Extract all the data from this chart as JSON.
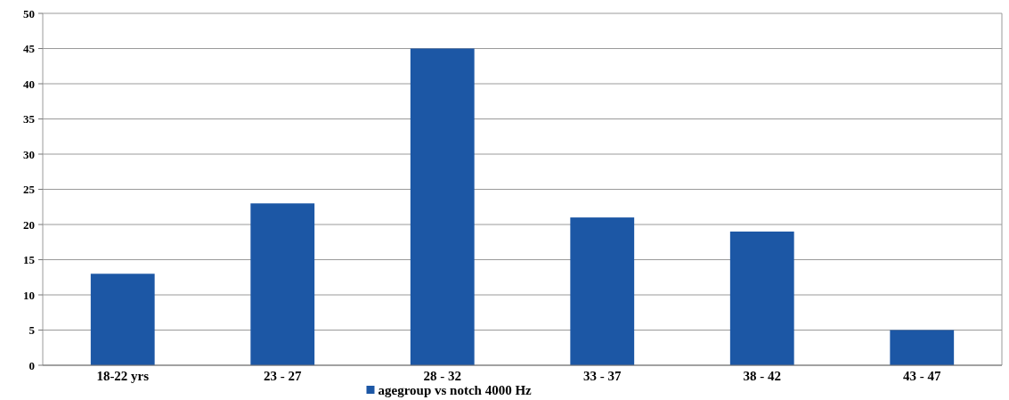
{
  "chart_data": {
    "type": "bar",
    "categories": [
      "18-22 yrs",
      "23 - 27",
      "28 - 32",
      "33 - 37",
      "38 - 42",
      "43 - 47"
    ],
    "series": [
      {
        "name": "agegroup vs notch 4000 Hz",
        "color": "#1c57a5",
        "values": [
          13,
          23,
          45,
          21,
          19,
          5
        ]
      }
    ],
    "ylim": [
      0,
      50
    ],
    "yticks": [
      0,
      5,
      10,
      15,
      20,
      25,
      30,
      35,
      40,
      45,
      50
    ],
    "grid": "y",
    "legend": "bottom"
  }
}
